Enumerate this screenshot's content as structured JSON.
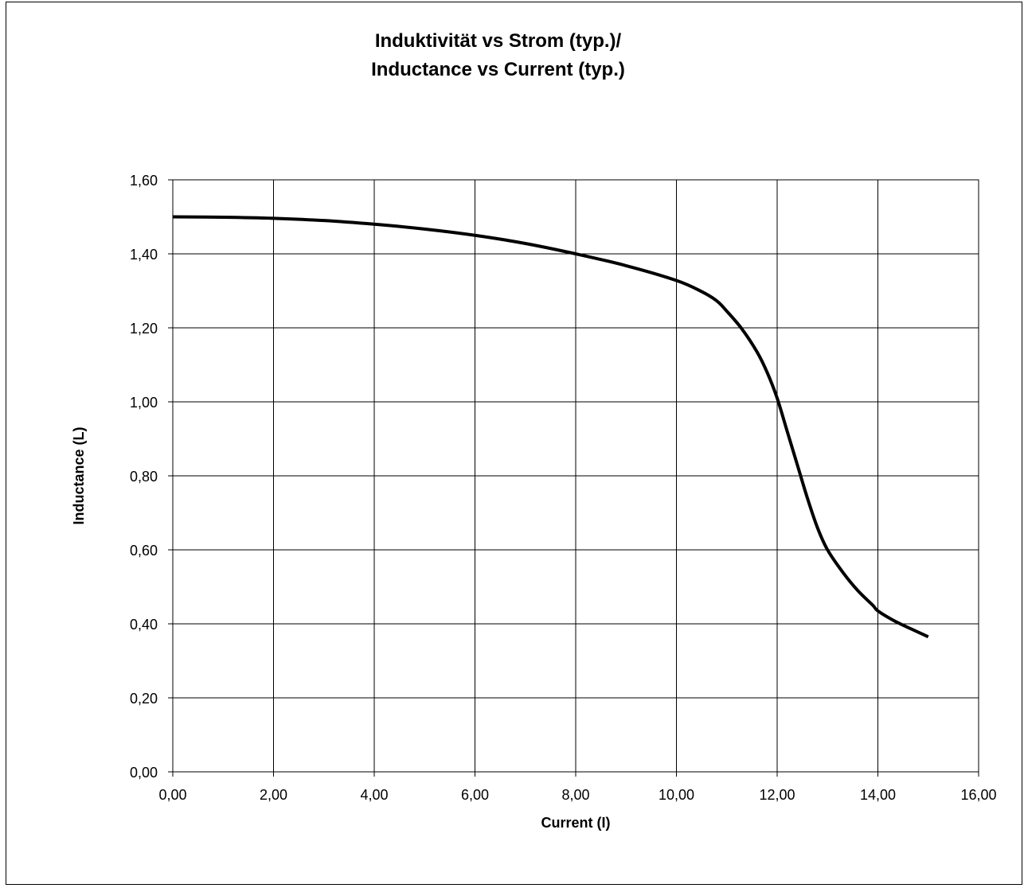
{
  "chart_data": {
    "type": "line",
    "title_lines": [
      "Induktivität vs Strom (typ.)/",
      "Inductance vs Current (typ.)"
    ],
    "xlabel": "Current (I)",
    "ylabel": "Inductance (L)",
    "xlim": [
      0,
      16
    ],
    "ylim": [
      0,
      1.6
    ],
    "x_ticks": [
      "0,00",
      "2,00",
      "4,00",
      "6,00",
      "8,00",
      "10,00",
      "12,00",
      "14,00",
      "16,00"
    ],
    "y_ticks": [
      "0,00",
      "0,20",
      "0,40",
      "0,60",
      "0,80",
      "1,00",
      "1,20",
      "1,40",
      "1,60"
    ],
    "grid": true,
    "series": [
      {
        "color": "#000000",
        "x": [
          0,
          1,
          2,
          3,
          4,
          5,
          6,
          7,
          8,
          9,
          10,
          10.5,
          10.8,
          11,
          11.3,
          11.6,
          11.8,
          12,
          12.2,
          12.4,
          12.6,
          12.8,
          13,
          13.3,
          13.6,
          13.9,
          14,
          14.3,
          14.6,
          15
        ],
        "y": [
          1.5,
          1.499,
          1.496,
          1.49,
          1.48,
          1.467,
          1.45,
          1.428,
          1.4,
          1.368,
          1.328,
          1.298,
          1.273,
          1.245,
          1.197,
          1.135,
          1.08,
          1.01,
          0.92,
          0.83,
          0.74,
          0.66,
          0.6,
          0.54,
          0.49,
          0.45,
          0.435,
          0.41,
          0.39,
          0.365
        ]
      }
    ]
  }
}
